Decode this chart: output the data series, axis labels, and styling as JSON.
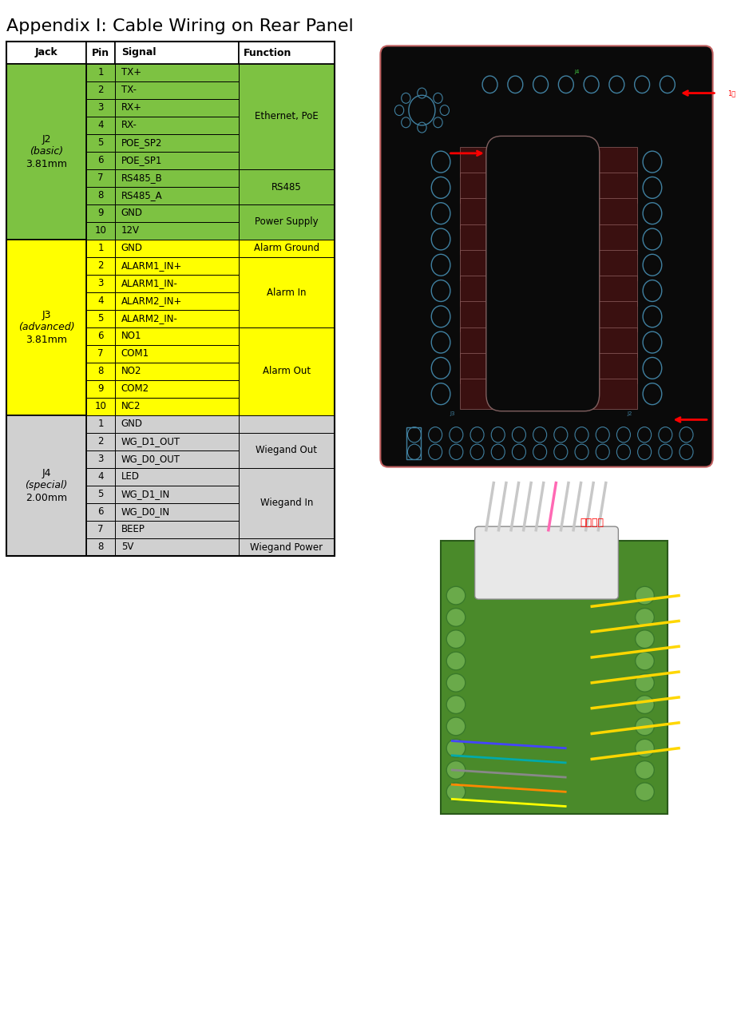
{
  "title": "Appendix I: Cable Wiring on Rear Panel",
  "title_fontsize": 16,
  "header": [
    "Jack",
    "Pin",
    "Signal",
    "Function"
  ],
  "green_bg": "#7DC242",
  "yellow_bg": "#FFFF00",
  "gray_bg": "#D0D0D0",
  "white_bg": "#ffffff",
  "j2_label_lines": [
    [
      "J2",
      "normal",
      "normal"
    ],
    [
      "(basic)",
      "italic",
      "normal"
    ],
    [
      "3.81mm",
      "normal",
      "normal"
    ]
  ],
  "j2_rows": [
    [
      "1",
      "TX+"
    ],
    [
      "2",
      "TX-"
    ],
    [
      "3",
      "RX+"
    ],
    [
      "4",
      "RX-"
    ],
    [
      "5",
      "POE_SP2"
    ],
    [
      "6",
      "POE_SP1"
    ],
    [
      "7",
      "RS485_B"
    ],
    [
      "8",
      "RS485_A"
    ],
    [
      "9",
      "GND"
    ],
    [
      "10",
      "12V"
    ]
  ],
  "j2_functions": [
    {
      "text": "Ethernet, PoE",
      "start": 0,
      "end": 5
    },
    {
      "text": "RS485",
      "start": 6,
      "end": 7
    },
    {
      "text": "Power Supply",
      "start": 8,
      "end": 9
    }
  ],
  "j3_label_lines": [
    [
      "J3",
      "normal",
      "normal"
    ],
    [
      "(advanced)",
      "italic",
      "normal"
    ],
    [
      "3.81mm",
      "normal",
      "normal"
    ]
  ],
  "j3_rows": [
    [
      "1",
      "GND"
    ],
    [
      "2",
      "ALARM1_IN+"
    ],
    [
      "3",
      "ALARM1_IN-"
    ],
    [
      "4",
      "ALARM2_IN+"
    ],
    [
      "5",
      "ALARM2_IN-"
    ],
    [
      "6",
      "NO1"
    ],
    [
      "7",
      "COM1"
    ],
    [
      "8",
      "NO2"
    ],
    [
      "9",
      "COM2"
    ],
    [
      "10",
      "NC2"
    ]
  ],
  "j3_functions": [
    {
      "text": "Alarm Ground",
      "start": 0,
      "end": 0
    },
    {
      "text": "Alarm In",
      "start": 1,
      "end": 4
    },
    {
      "text": "Alarm Out",
      "start": 5,
      "end": 9
    }
  ],
  "j4_label_lines": [
    [
      "J4",
      "normal",
      "normal"
    ],
    [
      "(special)",
      "italic",
      "normal"
    ],
    [
      "2.00mm",
      "normal",
      "normal"
    ]
  ],
  "j4_rows": [
    [
      "1",
      "GND"
    ],
    [
      "2",
      "WG_D1_OUT"
    ],
    [
      "3",
      "WG_D0_OUT"
    ],
    [
      "4",
      "LED"
    ],
    [
      "5",
      "WG_D1_IN"
    ],
    [
      "6",
      "WG_D0_IN"
    ],
    [
      "7",
      "BEEP"
    ],
    [
      "8",
      "5V"
    ]
  ],
  "j4_functions": [
    {
      "text": "Wiegand Out",
      "start": 1,
      "end": 2
    },
    {
      "text": "Wiegand In",
      "start": 3,
      "end": 6
    },
    {
      "text": "Wiegand Power",
      "start": 7,
      "end": 7
    }
  ],
  "img1_bg": "#0A0A0A",
  "img2_bg": "#A08060",
  "fig_width": 9.29,
  "fig_height": 12.72,
  "dpi": 100
}
